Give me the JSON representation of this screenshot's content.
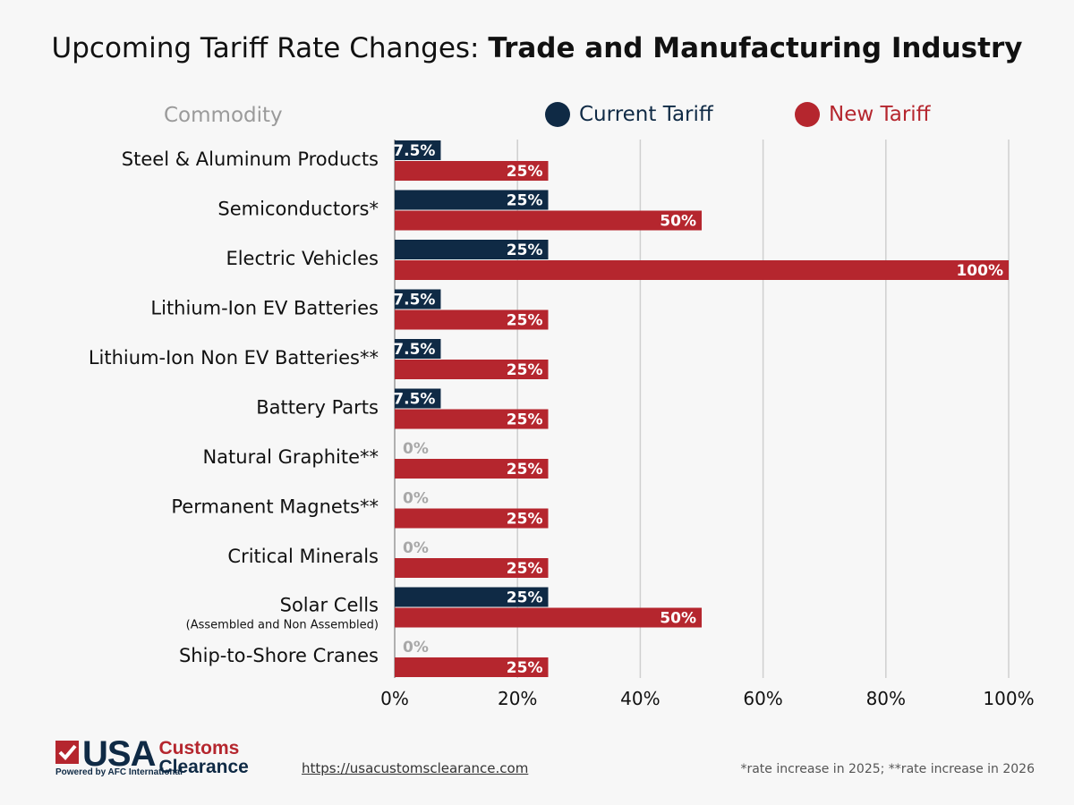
{
  "header": {
    "title_regular": "Upcoming Tariff Rate Changes: ",
    "title_bold": "Trade and Manufacturing Industry",
    "commodity_label": "Commodity"
  },
  "legend": {
    "current": "Current Tariff",
    "new": "New Tariff"
  },
  "colors": {
    "current": "#0f2a45",
    "new": "#b5262e",
    "zero_label": "#a8a8a8",
    "grid": "#cfcfcf",
    "background": "#f7f7f7"
  },
  "chart_data": {
    "type": "bar",
    "orientation": "horizontal",
    "title": "Upcoming Tariff Rate Changes: Trade and Manufacturing Industry",
    "xlabel": "",
    "ylabel": "Commodity",
    "xlim": [
      0,
      100
    ],
    "x_ticks": [
      "0%",
      "20%",
      "40%",
      "60%",
      "80%",
      "100%"
    ],
    "x_tick_values": [
      0,
      20,
      40,
      60,
      80,
      100
    ],
    "grid": true,
    "legend_position": "top-right",
    "categories": [
      {
        "name": "Steel & Aluminum Products",
        "sub": ""
      },
      {
        "name": "Semiconductors*",
        "sub": ""
      },
      {
        "name": "Electric Vehicles",
        "sub": ""
      },
      {
        "name": "Lithium-Ion EV Batteries",
        "sub": ""
      },
      {
        "name": "Lithium-Ion Non EV Batteries**",
        "sub": ""
      },
      {
        "name": "Battery Parts",
        "sub": ""
      },
      {
        "name": "Natural Graphite**",
        "sub": ""
      },
      {
        "name": "Permanent Magnets**",
        "sub": ""
      },
      {
        "name": "Critical Minerals",
        "sub": ""
      },
      {
        "name": "Solar Cells",
        "sub": "(Assembled and Non Assembled)"
      },
      {
        "name": "Ship-to-Shore Cranes",
        "sub": ""
      }
    ],
    "series": [
      {
        "name": "Current Tariff",
        "values": [
          7.5,
          25,
          25,
          7.5,
          7.5,
          7.5,
          0,
          0,
          0,
          25,
          0
        ],
        "labels": [
          "7.5%",
          "25%",
          "25%",
          "7.5%",
          "7.5%",
          "7.5%",
          "0%",
          "0%",
          "0%",
          "25%",
          "0%"
        ]
      },
      {
        "name": "New Tariff",
        "values": [
          25,
          50,
          100,
          25,
          25,
          25,
          25,
          25,
          25,
          50,
          25
        ],
        "labels": [
          "25%",
          "50%",
          "100%",
          "25%",
          "25%",
          "25%",
          "25%",
          "25%",
          "25%",
          "50%",
          "25%"
        ]
      }
    ]
  },
  "footer": {
    "logo_usa": "USA",
    "logo_customs": "Customs",
    "logo_clearance": "Clearance",
    "logo_powered": "Powered by AFC International",
    "url": "https://usacustomsclearance.com",
    "note": "*rate increase in 2025; **rate increase in 2026"
  }
}
